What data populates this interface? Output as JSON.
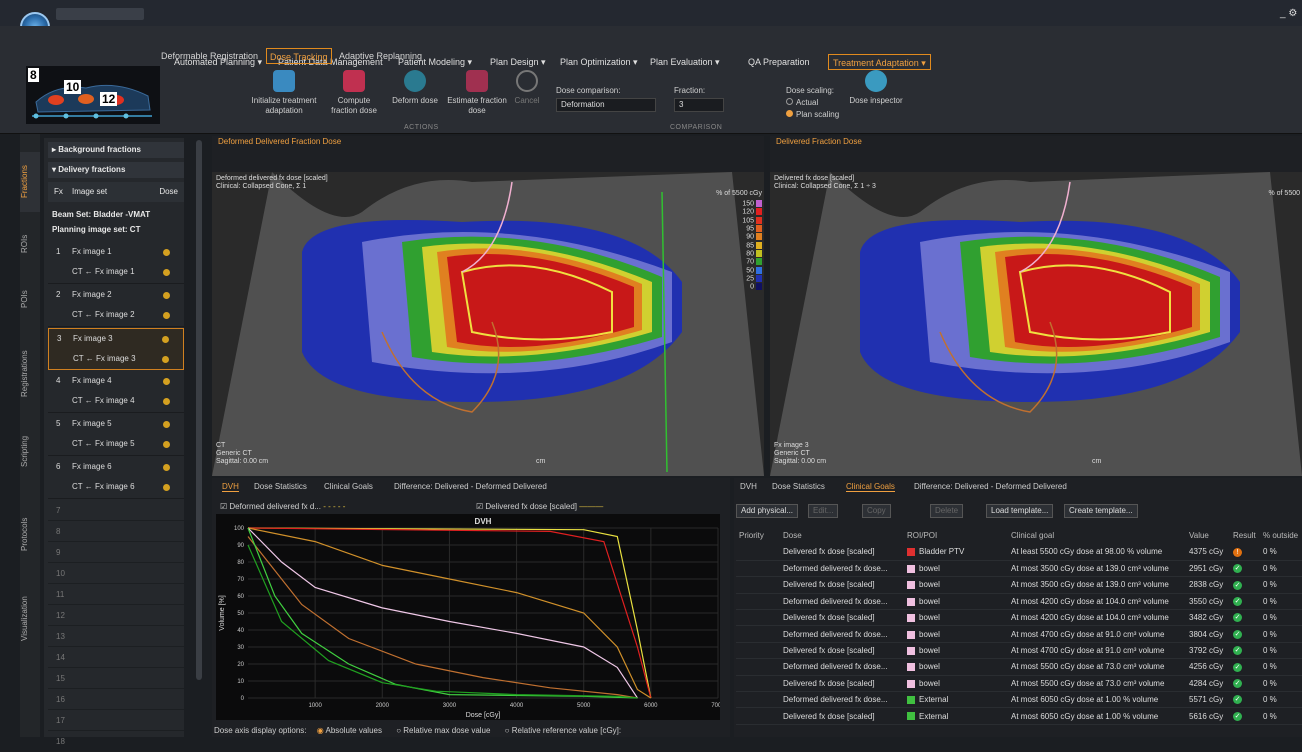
{
  "menu": {
    "items": [
      "Automated Planning ▾",
      "Patient Data Management",
      "Patient Modeling ▾",
      "Plan Design ▾",
      "Plan Optimization ▾",
      "Plan Evaluation ▾",
      "QA Preparation",
      "Treatment Adaptation ▾"
    ],
    "subtabs": [
      "Deformable Registration",
      "Dose Tracking",
      "Adaptive Replanning"
    ]
  },
  "thumb": {
    "n1": "8",
    "n2": "10",
    "n3": "12"
  },
  "ribbon": {
    "init_label": "Initialize treatment adaptation",
    "compute_label": "Compute fraction dose",
    "deform_label": "Deform dose",
    "estimate_label": "Estimate fraction dose",
    "cancel_label": "Cancel",
    "actions_group": "ACTIONS",
    "dose_comparison_label": "Dose comparison:",
    "dose_comparison_value": "Deformation",
    "fraction_label": "Fraction:",
    "fraction_value": "3",
    "comparison_group": "COMPARISON",
    "dose_scaling_label": "Dose scaling:",
    "actual_label": "Actual",
    "plan_scaling_label": "Plan scaling",
    "inspector_label": "Dose inspector"
  },
  "vtabs": [
    "Fractions",
    "ROIs",
    "POIs",
    "Registrations",
    "Scripting",
    "Protocols",
    "Visualization"
  ],
  "left": {
    "background_fractions": "Background fractions",
    "delivery_fractions": "Delivery fractions",
    "col_fx": "Fx",
    "col_imageset": "Image set",
    "col_dose": "Dose",
    "beam_set": "Beam Set: Bladder -VMAT",
    "planning_set": "Planning image set: CT",
    "fractions": [
      {
        "n": "1",
        "name": "Fx image 1",
        "sub": "CT ← Fx image 1"
      },
      {
        "n": "2",
        "name": "Fx image 2",
        "sub": "CT ← Fx image 2"
      },
      {
        "n": "3",
        "name": "Fx image 3",
        "sub": "CT ← Fx image 3"
      },
      {
        "n": "4",
        "name": "Fx image 4",
        "sub": "CT ← Fx image 4"
      },
      {
        "n": "5",
        "name": "Fx image 5",
        "sub": "CT ← Fx image 5"
      },
      {
        "n": "6",
        "name": "Fx image 6",
        "sub": "CT ← Fx image 6"
      }
    ],
    "empty_rows": [
      "7",
      "8",
      "9",
      "10",
      "11",
      "12",
      "13",
      "14",
      "15",
      "16",
      "17",
      "18"
    ]
  },
  "view_left": {
    "header": "Deformed Delivered Fraction Dose",
    "ov1": "Deformed delivered fx dose [scaled]",
    "ov2": "Clinical: Collapsed Cone, Σ 1",
    "pct": "% of 5500 cGy",
    "legend": [
      "150",
      "120",
      "105",
      "95",
      "90",
      "85",
      "80",
      "70",
      "50",
      "25",
      "0"
    ],
    "bl1": "CT",
    "bl2": "Generic CT",
    "bl3": "Sagittal: 0.00 cm",
    "scale_unit": "cm"
  },
  "view_right": {
    "header": "Delivered Fraction Dose",
    "ov1": "Delivered fx dose [scaled]",
    "ov2": "Clinical: Collapsed Cone, Σ 1 ÷ 3",
    "pct": "% of 5500",
    "bl1": "Fx image 3",
    "bl2": "Generic CT",
    "bl3": "Sagittal: 0.00 cm",
    "scale_unit": "cm"
  },
  "bottom_left": {
    "tabs": [
      "DVH",
      "Dose Statistics",
      "Clinical Goals",
      "Difference: Delivered - Deformed Delivered"
    ],
    "legend1": "Deformed delivered fx d...",
    "legend2": "Delivered fx dose [scaled]",
    "axis_options_label": "Dose axis display options:",
    "opt1": "Absolute values",
    "opt2": "Relative max dose value",
    "opt3": "Relative reference value [cGy]:"
  },
  "chart_data": {
    "type": "line",
    "title": "DVH",
    "xlabel": "Dose [cGy]",
    "ylabel": "Volume [%]",
    "xlim": [
      0,
      7000
    ],
    "ylim": [
      0,
      100
    ],
    "xticks": [
      1000,
      2000,
      3000,
      4000,
      5000,
      6000,
      7000
    ],
    "yticks": [
      0,
      10,
      20,
      30,
      40,
      50,
      60,
      70,
      80,
      90,
      100
    ],
    "series": [
      {
        "color": "#e8e040",
        "values": [
          [
            0,
            100
          ],
          [
            5000,
            99
          ],
          [
            5500,
            95
          ],
          [
            5800,
            40
          ],
          [
            6000,
            0
          ]
        ]
      },
      {
        "color": "#e02020",
        "values": [
          [
            0,
            100
          ],
          [
            4500,
            98
          ],
          [
            5300,
            92
          ],
          [
            5800,
            30
          ],
          [
            6000,
            0
          ]
        ]
      },
      {
        "color": "#d0902a",
        "values": [
          [
            0,
            100
          ],
          [
            1000,
            92
          ],
          [
            2000,
            78
          ],
          [
            3000,
            70
          ],
          [
            4000,
            62
          ],
          [
            5000,
            50
          ],
          [
            5500,
            30
          ],
          [
            5800,
            5
          ],
          [
            6000,
            0
          ]
        ]
      },
      {
        "color": "#f0c8e8",
        "values": [
          [
            0,
            100
          ],
          [
            500,
            80
          ],
          [
            1000,
            65
          ],
          [
            2000,
            53
          ],
          [
            3000,
            45
          ],
          [
            4000,
            38
          ],
          [
            5000,
            30
          ],
          [
            5500,
            18
          ],
          [
            5800,
            0
          ]
        ]
      },
      {
        "color": "#c07030",
        "values": [
          [
            0,
            95
          ],
          [
            800,
            55
          ],
          [
            1500,
            35
          ],
          [
            2500,
            20
          ],
          [
            3500,
            12
          ],
          [
            4500,
            6
          ],
          [
            5500,
            2
          ],
          [
            5800,
            0
          ]
        ]
      },
      {
        "color": "#40d040",
        "values": [
          [
            0,
            100
          ],
          [
            400,
            60
          ],
          [
            800,
            38
          ],
          [
            1500,
            20
          ],
          [
            2200,
            8
          ],
          [
            3000,
            2
          ],
          [
            5000,
            1
          ],
          [
            5800,
            0
          ]
        ]
      },
      {
        "color": "#20a020",
        "values": [
          [
            0,
            90
          ],
          [
            500,
            45
          ],
          [
            1200,
            22
          ],
          [
            2000,
            9
          ],
          [
            2800,
            4
          ],
          [
            4000,
            2
          ],
          [
            5500,
            1
          ],
          [
            5800,
            0
          ]
        ]
      }
    ]
  },
  "bottom_right": {
    "tabs": [
      "DVH",
      "Dose Statistics",
      "Clinical Goals",
      "Difference: Delivered - Deformed Delivered"
    ],
    "add_physical": "Add physical...",
    "edit": "Edit...",
    "copy": "Copy",
    "delete": "Delete",
    "load_template": "Load template...",
    "create_template": "Create template...",
    "columns": [
      "Priority",
      "Dose",
      "ROI/POI",
      "Clinical goal",
      "Value",
      "Result",
      "% outside"
    ],
    "rows": [
      {
        "dose": "Delivered fx dose [scaled]",
        "roi": "Bladder PTV",
        "roi_color": "#e03030",
        "goal": "At least 5500 cGy dose at 98.00 % volume",
        "value": "4375 cGy",
        "result": "fail",
        "pct": "0 %"
      },
      {
        "dose": "Deformed delivered fx dose...",
        "roi": "bowel",
        "roi_color": "#f0c0e0",
        "goal": "At most 3500 cGy dose at 139.0 cm³ volume",
        "value": "2951 cGy",
        "result": "pass",
        "pct": "0 %"
      },
      {
        "dose": "Delivered fx dose [scaled]",
        "roi": "bowel",
        "roi_color": "#f0c0e0",
        "goal": "At most 3500 cGy dose at 139.0 cm³ volume",
        "value": "2838 cGy",
        "result": "pass",
        "pct": "0 %"
      },
      {
        "dose": "Deformed delivered fx dose...",
        "roi": "bowel",
        "roi_color": "#f0c0e0",
        "goal": "At most 4200 cGy dose at 104.0 cm³ volume",
        "value": "3550 cGy",
        "result": "pass",
        "pct": "0 %"
      },
      {
        "dose": "Delivered fx dose [scaled]",
        "roi": "bowel",
        "roi_color": "#f0c0e0",
        "goal": "At most 4200 cGy dose at 104.0 cm³ volume",
        "value": "3482 cGy",
        "result": "pass",
        "pct": "0 %"
      },
      {
        "dose": "Deformed delivered fx dose...",
        "roi": "bowel",
        "roi_color": "#f0c0e0",
        "goal": "At most 4700 cGy dose at 91.0 cm³ volume",
        "value": "3804 cGy",
        "result": "pass",
        "pct": "0 %"
      },
      {
        "dose": "Delivered fx dose [scaled]",
        "roi": "bowel",
        "roi_color": "#f0c0e0",
        "goal": "At most 4700 cGy dose at 91.0 cm³ volume",
        "value": "3792 cGy",
        "result": "pass",
        "pct": "0 %"
      },
      {
        "dose": "Deformed delivered fx dose...",
        "roi": "bowel",
        "roi_color": "#f0c0e0",
        "goal": "At most 5500 cGy dose at 73.0 cm³ volume",
        "value": "4256 cGy",
        "result": "pass",
        "pct": "0 %"
      },
      {
        "dose": "Delivered fx dose [scaled]",
        "roi": "bowel",
        "roi_color": "#f0c0e0",
        "goal": "At most 5500 cGy dose at 73.0 cm³ volume",
        "value": "4284 cGy",
        "result": "pass",
        "pct": "0 %"
      },
      {
        "dose": "Deformed delivered fx dose...",
        "roi": "External",
        "roi_color": "#40c040",
        "goal": "At most 6050 cGy dose at 1.00 % volume",
        "value": "5571 cGy",
        "result": "pass",
        "pct": "0 %"
      },
      {
        "dose": "Delivered fx dose [scaled]",
        "roi": "External",
        "roi_color": "#40c040",
        "goal": "At most 6050 cGy dose at 1.00 % volume",
        "value": "5616 cGy",
        "result": "pass",
        "pct": "0 %"
      }
    ]
  }
}
